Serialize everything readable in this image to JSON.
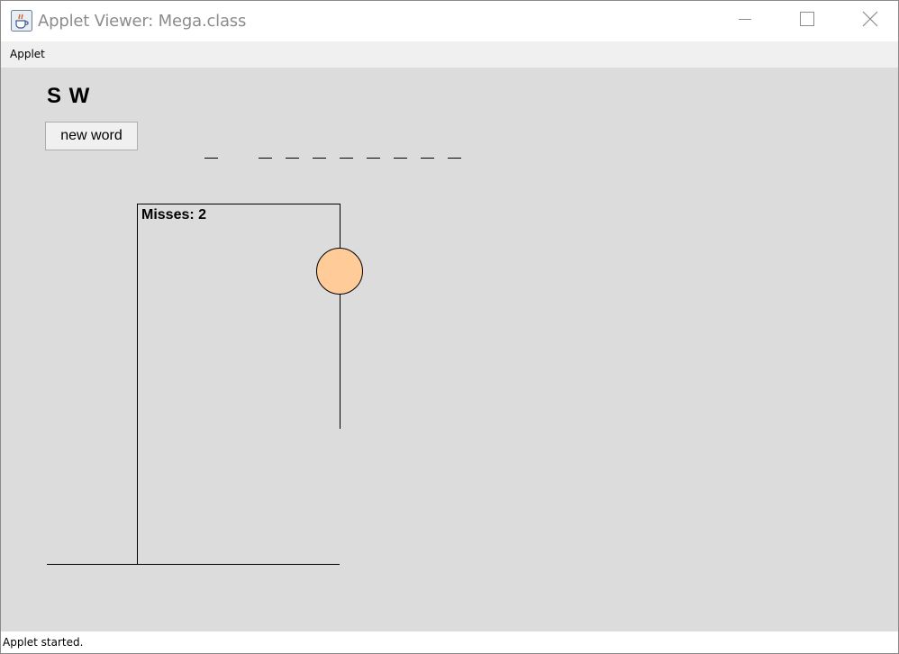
{
  "window": {
    "title": "Applet Viewer: Mega.class",
    "app_icon": "java-cup-icon",
    "controls": [
      "minimize-icon",
      "maximize-icon",
      "close-icon"
    ]
  },
  "menu": {
    "items": [
      {
        "label": "Applet"
      }
    ]
  },
  "applet": {
    "guessed_letters": "S W",
    "new_word_button": "new word",
    "word_blanks": [
      "_",
      "",
      "_",
      "_",
      "_",
      "_",
      "_",
      "_",
      "_",
      "_"
    ],
    "misses_label": "Misses: 2",
    "head_color": "#FFCC99",
    "background_color": "#DCDCDC"
  },
  "status": {
    "text": "Applet started."
  }
}
